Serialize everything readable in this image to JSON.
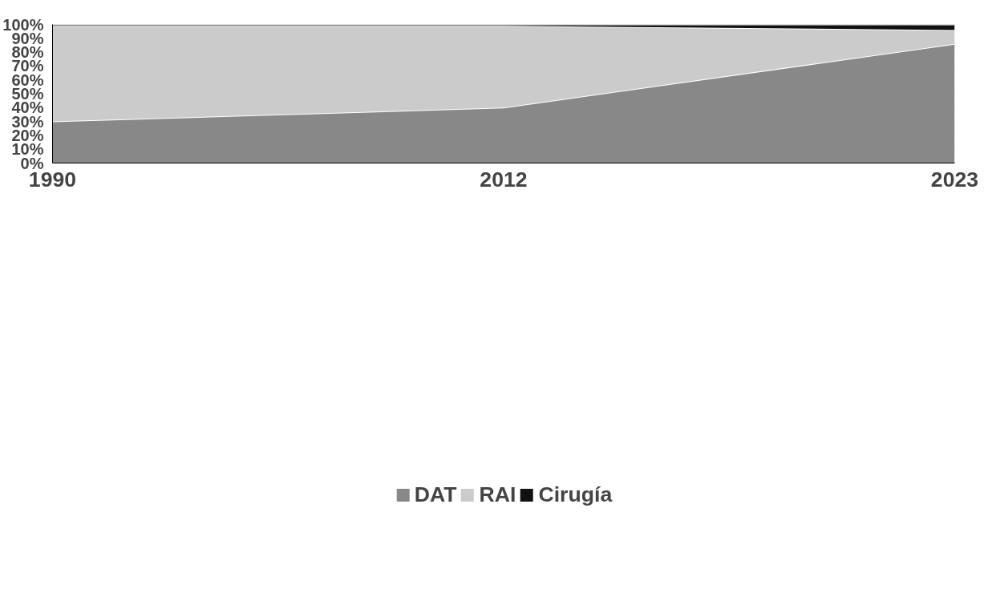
{
  "chart_data": {
    "type": "area",
    "stacked": true,
    "categories": [
      "1990",
      "2012",
      "2023"
    ],
    "series": [
      {
        "name": "DAT",
        "color": "#888888",
        "values": [
          30,
          40,
          86
        ]
      },
      {
        "name": "RAI",
        "color": "#cbcbcb",
        "values": [
          69,
          59,
          10
        ]
      },
      {
        "name": "Cirugía",
        "color": "#111111",
        "values": [
          1,
          1,
          4
        ]
      }
    ],
    "ylim": [
      0,
      100
    ],
    "yticks": [
      {
        "value": 0,
        "label": "0%"
      },
      {
        "value": 10,
        "label": "10%"
      },
      {
        "value": 20,
        "label": "20%"
      },
      {
        "value": 30,
        "label": "30%"
      },
      {
        "value": 40,
        "label": "40%"
      },
      {
        "value": 50,
        "label": "50%"
      },
      {
        "value": 60,
        "label": "60%"
      },
      {
        "value": 70,
        "label": "70%"
      },
      {
        "value": 80,
        "label": "80%"
      },
      {
        "value": 90,
        "label": "90%"
      },
      {
        "value": 100,
        "label": "100%"
      }
    ],
    "grid": "y",
    "legend": "bottom"
  }
}
